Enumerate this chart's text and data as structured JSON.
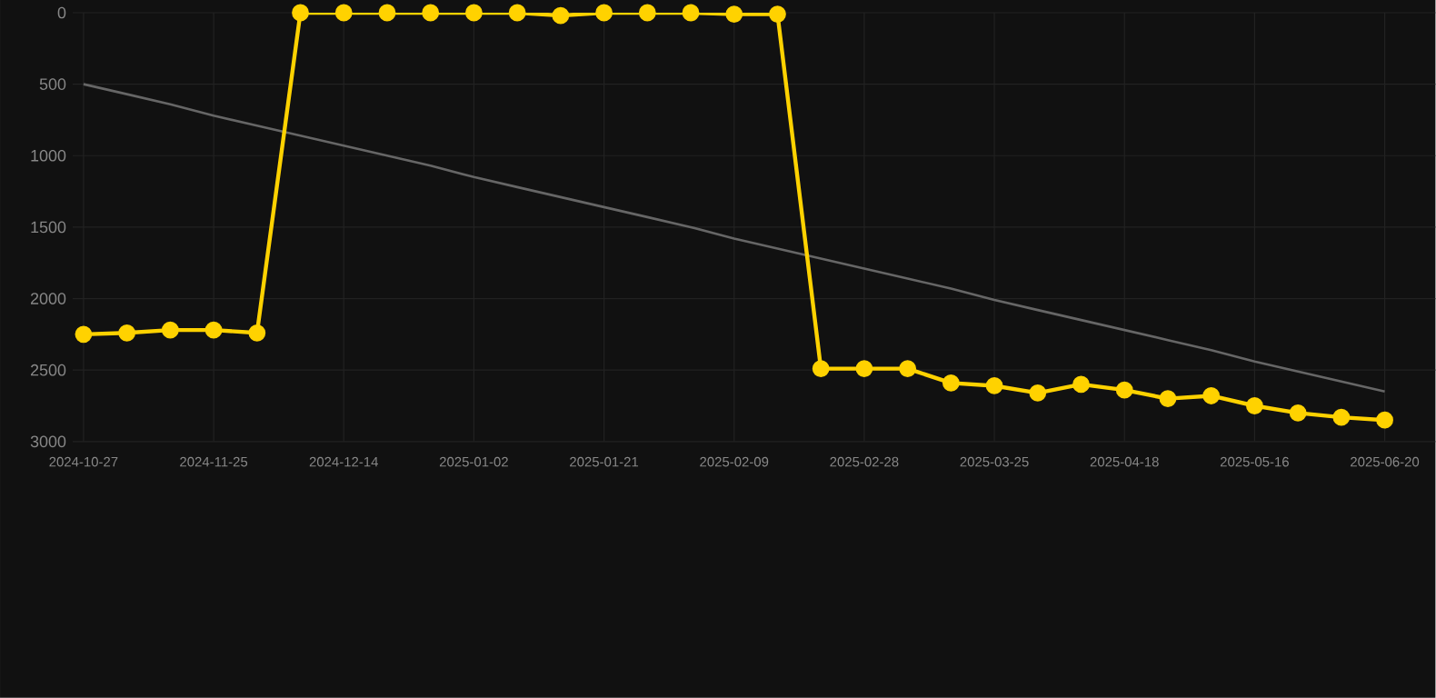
{
  "chart_data": {
    "type": "line",
    "categories": [
      "2024-10-27",
      null,
      null,
      "2024-11-25",
      null,
      null,
      "2024-12-14",
      null,
      null,
      "2025-01-02",
      null,
      null,
      "2025-01-21",
      null,
      null,
      "2025-02-09",
      null,
      null,
      "2025-02-28",
      null,
      null,
      "2025-03-25",
      null,
      null,
      "2025-04-18",
      null,
      null,
      "2025-05-16",
      null,
      null,
      "2025-06-20"
    ],
    "series": [
      {
        "color": "#ffd200",
        "marker": "circle",
        "values": [
          2250,
          2240,
          2220,
          2220,
          2240,
          0,
          0,
          0,
          0,
          0,
          0,
          20,
          0,
          0,
          0,
          10,
          10,
          2490,
          2490,
          2490,
          2590,
          2610,
          2660,
          2600,
          2640,
          2700,
          2680,
          2750,
          2800,
          2830,
          2850
        ]
      },
      {
        "type": "line",
        "color": "#666666",
        "marker": "none",
        "values": [
          500,
          570,
          640,
          720,
          790,
          860,
          930,
          1000,
          1070,
          1150,
          1220,
          1290,
          1360,
          1430,
          1500,
          1580,
          1650,
          1720,
          1790,
          1860,
          1930,
          2010,
          2080,
          2150,
          2220,
          2290,
          2360,
          2440,
          2510,
          2580,
          2650
        ]
      }
    ],
    "ylim": [
      3000,
      0
    ],
    "yticks": [
      0,
      500,
      1000,
      1500,
      2000,
      2500,
      3000
    ],
    "grid": true,
    "legend": false
  }
}
